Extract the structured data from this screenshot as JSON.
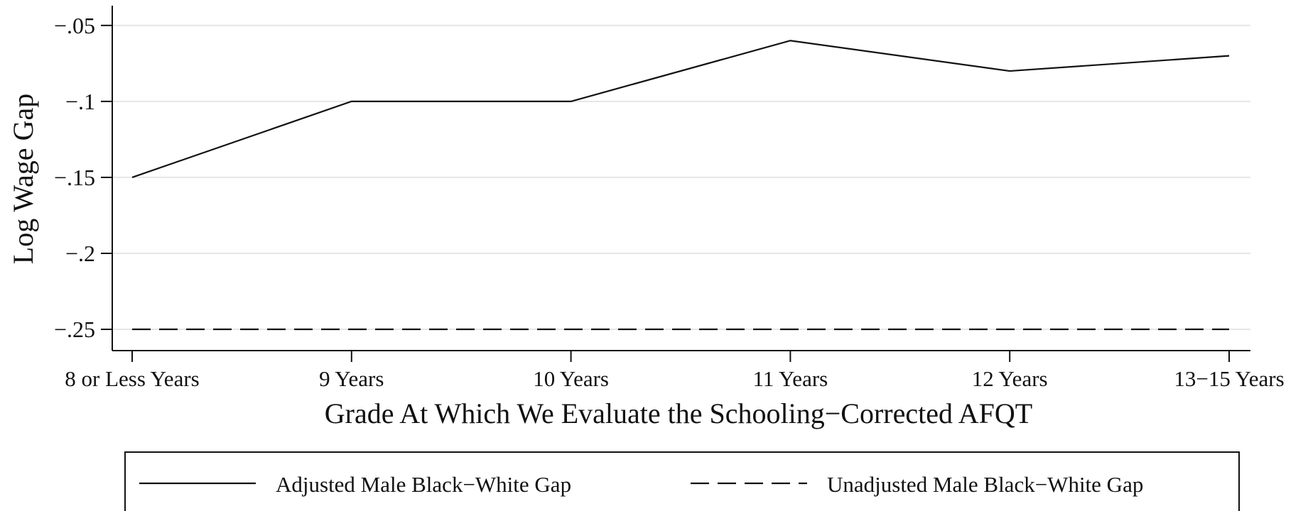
{
  "chart_data": {
    "type": "line",
    "categories": [
      "8 or Less Years",
      "9 Years",
      "10 Years",
      "11 Years",
      "12 Years",
      "13−15 Years"
    ],
    "series": [
      {
        "name": "Adjusted Male Black−White Gap",
        "values": [
          -0.15,
          -0.1,
          -0.1,
          -0.06,
          -0.08,
          -0.07
        ],
        "style": "solid",
        "color": "#111111"
      },
      {
        "name": "Unadjusted Male Black−White Gap",
        "values": [
          -0.25,
          -0.25,
          -0.25,
          -0.25,
          -0.25,
          -0.25
        ],
        "style": "dashed",
        "color": "#111111"
      }
    ],
    "xlabel": "Grade At Which We Evaluate the Schooling−Corrected AFQT",
    "ylabel": "Log Wage Gap",
    "yticks": [
      -0.05,
      -0.1,
      -0.15,
      -0.2,
      -0.25
    ],
    "ytick_labels": [
      "−.05",
      "−.1",
      "−.15",
      "−.2",
      "−.25"
    ],
    "ylim": [
      -0.264,
      -0.037
    ],
    "grid": true,
    "legend_position": "bottom"
  }
}
